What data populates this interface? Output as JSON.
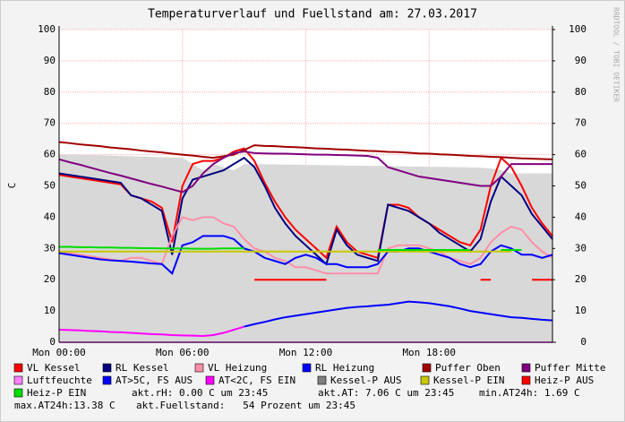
{
  "chart_data": {
    "type": "line",
    "title": "Temperaturverlauf und Fuellstand am: 27.03.2017",
    "y_label": "C",
    "watermark": "RRDTOOL / TOBI OETIKER",
    "x": [
      0,
      0.5,
      1,
      1.5,
      2,
      2.5,
      3,
      3.5,
      4,
      4.5,
      5,
      5.5,
      6,
      6.5,
      7,
      7.5,
      8,
      8.5,
      9,
      9.5,
      10,
      10.5,
      11,
      11.5,
      12,
      12.5,
      13,
      13.5,
      14,
      14.5,
      15,
      15.5,
      16,
      16.5,
      17,
      17.5,
      18,
      18.5,
      19,
      19.5,
      20,
      20.5,
      21,
      21.5,
      22,
      22.5,
      23,
      23.5,
      24
    ],
    "xlim": [
      0,
      24
    ],
    "xticks": [
      {
        "value": 0,
        "label": "Mon 00:00"
      },
      {
        "value": 6,
        "label": "Mon 06:00"
      },
      {
        "value": 12,
        "label": "Mon 12:00"
      },
      {
        "value": 18,
        "label": "Mon 18:00"
      }
    ],
    "ylim": [
      0,
      100
    ],
    "yticks": [
      0,
      10,
      20,
      30,
      40,
      50,
      60,
      70,
      80,
      90,
      100
    ],
    "y2lim": [
      0,
      100
    ],
    "y2ticks": [
      0,
      10,
      20,
      30,
      40,
      50,
      60,
      70,
      80,
      90,
      100
    ],
    "grid": true,
    "series": [
      {
        "name": "VL Kessel",
        "color": "#ff0000",
        "values": [
          53.5,
          53,
          52.5,
          52,
          51.5,
          51,
          50.5,
          47,
          46,
          45,
          43,
          32,
          50,
          57,
          58,
          58,
          59,
          61,
          62,
          58,
          51,
          45,
          40,
          36,
          33,
          30,
          27,
          37,
          32,
          29,
          28,
          27,
          44,
          44,
          43,
          40,
          38,
          36,
          34,
          32,
          31,
          36,
          50,
          59,
          56,
          50,
          43,
          38,
          34
        ]
      },
      {
        "name": "RL Kessel",
        "color": "#000080",
        "values": [
          54,
          53.5,
          53,
          52.5,
          52,
          51.5,
          51,
          47,
          46,
          44,
          42,
          28,
          46,
          52,
          53,
          54,
          55,
          57,
          59,
          56,
          50,
          43,
          38,
          34,
          31,
          28,
          25,
          36,
          31,
          28,
          27,
          26,
          44,
          43,
          42,
          40,
          38,
          35,
          33,
          31,
          29,
          33,
          45,
          53,
          50,
          47,
          41,
          37,
          33
        ]
      },
      {
        "name": "VL Heizung",
        "color": "#ff8fa8",
        "values": [
          29,
          28.5,
          28,
          27.5,
          27,
          26.5,
          26,
          27,
          27,
          26,
          25,
          34,
          40,
          39,
          40,
          40,
          38,
          37,
          33,
          30,
          29,
          27,
          26,
          24,
          24,
          23,
          22,
          22,
          22,
          22,
          22,
          22,
          30,
          31,
          31,
          31,
          30,
          29,
          27,
          26,
          25,
          27,
          32,
          35,
          37,
          36,
          32,
          29,
          27
        ]
      },
      {
        "name": "RL Heizung",
        "color": "#0000ff",
        "values": [
          28.5,
          28,
          27.5,
          27,
          26.5,
          26.2,
          26,
          25.8,
          25.5,
          25.2,
          25,
          22,
          31,
          32,
          34,
          34,
          34,
          33,
          30,
          29,
          27,
          26,
          25,
          27,
          28,
          27,
          25,
          25,
          24,
          24,
          24,
          25,
          29,
          29,
          30,
          30,
          29,
          28,
          27,
          25,
          24,
          25,
          29,
          31,
          30,
          28,
          28,
          27,
          28
        ]
      },
      {
        "name": "Puffer Oben",
        "color": "#a00000",
        "values": [
          64,
          63.7,
          63.3,
          63,
          62.7,
          62.3,
          62,
          61.7,
          61.3,
          61,
          60.7,
          60.3,
          60,
          59.7,
          59.3,
          59,
          59.5,
          60,
          61.5,
          63,
          62.8,
          62.7,
          62.5,
          62.4,
          62.2,
          62,
          61.9,
          61.7,
          61.6,
          61.4,
          61.2,
          61.1,
          60.9,
          60.8,
          60.6,
          60.4,
          60.3,
          60.1,
          60,
          59.8,
          59.6,
          59.5,
          59.3,
          59.2,
          59,
          58.8,
          58.7,
          58.6,
          58.5
        ]
      },
      {
        "name": "Puffer Mitte",
        "color": "#800080",
        "values": [
          58.5,
          57.6,
          56.8,
          55.9,
          55,
          54.1,
          53.3,
          52.4,
          51.5,
          50.6,
          49.8,
          48.9,
          48,
          50,
          54,
          57,
          59,
          60.5,
          61,
          60.5,
          60.4,
          60.3,
          60.3,
          60.2,
          60.1,
          60,
          60,
          59.9,
          59.8,
          59.7,
          59.6,
          59,
          56,
          55,
          54,
          53,
          52.5,
          52,
          51.5,
          51,
          50.5,
          50,
          50,
          53,
          57,
          57,
          57,
          57,
          57
        ]
      },
      {
        "name": "Luftfeuchte",
        "color": "#ff80ff",
        "values": [
          0,
          0,
          0,
          0,
          0,
          0,
          0,
          0,
          0,
          0,
          0,
          0,
          0,
          0,
          0,
          0,
          0,
          0,
          0,
          0,
          0,
          0,
          0,
          0,
          0,
          0,
          0,
          0,
          0,
          0,
          0,
          0,
          0,
          0,
          0,
          0,
          0,
          0,
          0,
          0,
          0,
          0,
          0,
          0,
          0,
          0,
          0,
          0,
          0
        ]
      },
      {
        "name": "AT>5C, FS AUS",
        "color": "#0000ff",
        "values": [
          null,
          null,
          null,
          null,
          null,
          null,
          null,
          null,
          null,
          null,
          null,
          null,
          null,
          null,
          null,
          null,
          null,
          null,
          5,
          5.8,
          6.5,
          7.3,
          8,
          8.5,
          9,
          9.5,
          10,
          10.5,
          11,
          11.3,
          11.5,
          11.8,
          12,
          12.5,
          13,
          12.8,
          12.5,
          12,
          11.5,
          10.8,
          10,
          9.5,
          9,
          8.5,
          8,
          7.8,
          7.5,
          7.2,
          7
        ]
      },
      {
        "name": "AT<2C, FS EIN",
        "color": "#ff00ff",
        "values": [
          4,
          3.9,
          3.8,
          3.6,
          3.5,
          3.3,
          3.2,
          3,
          2.8,
          2.6,
          2.5,
          2.3,
          2.2,
          2.1,
          2,
          2.3,
          3,
          4,
          5,
          null,
          null,
          null,
          null,
          null,
          null,
          null,
          null,
          null,
          null,
          null,
          null,
          null,
          null,
          null,
          null,
          null,
          null,
          null,
          null,
          null,
          null,
          null,
          null,
          null,
          null,
          null,
          null,
          null,
          null
        ]
      },
      {
        "name": "Kessel-P AUS",
        "color": "#808080",
        "style": "area",
        "values": [
          60,
          60,
          60,
          59.9,
          59.8,
          59.7,
          59.6,
          59.5,
          59.4,
          59.3,
          59.2,
          59.1,
          59,
          57,
          55,
          57,
          56,
          55,
          57,
          57,
          56.9,
          56.9,
          56.8,
          56.8,
          56.7,
          56.7,
          56.6,
          56.6,
          56.5,
          56.5,
          56.4,
          56.4,
          56.3,
          56.3,
          56.2,
          56.2,
          56.1,
          56.1,
          56,
          56,
          55.9,
          55.8,
          55.6,
          55,
          54,
          54,
          54,
          54,
          54
        ]
      },
      {
        "name": "Kessel-P EIN",
        "color": "#c8c800",
        "values": [
          29,
          29,
          29,
          29,
          29,
          29,
          29,
          29,
          29,
          29,
          29,
          29,
          29,
          29,
          29,
          29,
          29,
          29,
          29,
          29,
          29,
          29,
          29,
          29,
          29,
          29,
          29,
          29,
          29,
          29,
          29,
          29,
          29,
          29,
          29,
          29,
          29,
          29,
          29,
          29,
          29,
          29,
          29,
          29,
          29,
          null,
          null,
          null,
          null
        ]
      },
      {
        "name": "Heiz-P AUS",
        "color": "#ff0000",
        "values": [
          null,
          null,
          null,
          null,
          null,
          null,
          null,
          null,
          null,
          null,
          null,
          null,
          null,
          null,
          null,
          null,
          null,
          null,
          null,
          20,
          20,
          20,
          20,
          20,
          20,
          20,
          20,
          null,
          null,
          null,
          null,
          null,
          null,
          null,
          null,
          null,
          null,
          null,
          null,
          null,
          null,
          20,
          20,
          null,
          null,
          null,
          20,
          20,
          20
        ]
      },
      {
        "name": "Heiz-P EIN",
        "color": "#00dd00",
        "values": [
          30.5,
          30.5,
          30.4,
          30.4,
          30.3,
          30.3,
          30.2,
          30.2,
          30.1,
          30.1,
          30,
          30,
          30,
          29.9,
          29.9,
          29.9,
          30,
          30,
          30,
          null,
          null,
          null,
          null,
          null,
          null,
          null,
          null,
          null,
          null,
          null,
          null,
          29.5,
          29.5,
          29.5,
          29.5,
          29.5,
          29.5,
          29.5,
          29.5,
          29.5,
          29.5,
          null,
          null,
          29.5,
          29.5,
          29.5,
          null,
          null,
          null
        ]
      }
    ],
    "notes": [
      "akt.rH: 0.00 C um 23:45",
      "akt.AT: 7.06 C um 23:45",
      "min.AT24h: 1.69 C",
      "max.AT24h:13.38 C",
      "akt.Fuellstand:   54 Prozent um 23:45"
    ]
  }
}
